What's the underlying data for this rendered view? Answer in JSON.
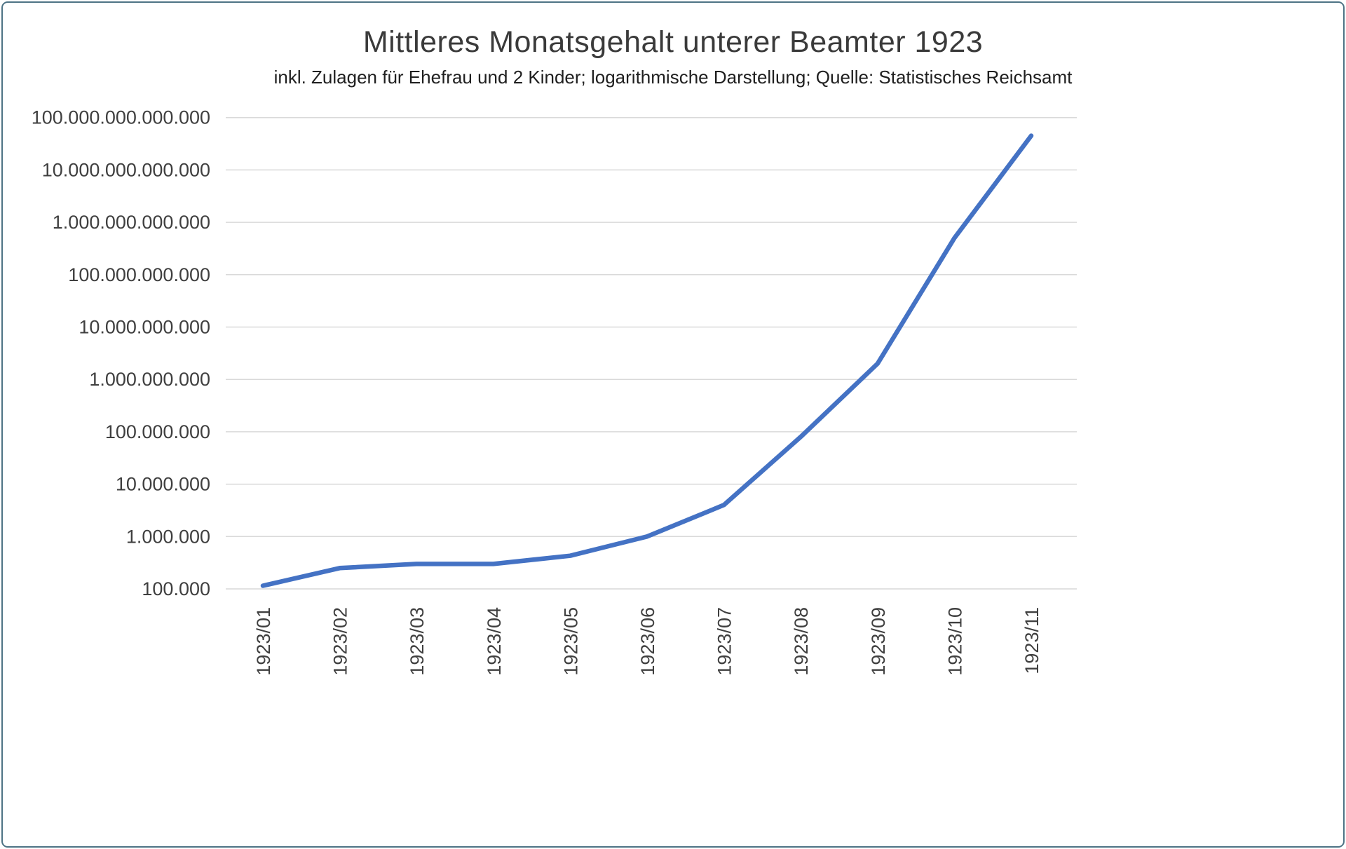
{
  "window": {
    "border_color": "#4e7385",
    "background": "#ffffff"
  },
  "chart_data": {
    "type": "line",
    "title": "Mittleres Monatsgehalt unterer Beamter 1923",
    "subtitle": "inkl. Zulagen für Ehefrau und 2 Kinder; logarithmische Darstellung; Quelle: Statistisches Reichsamt",
    "categories": [
      "1923/01",
      "1923/02",
      "1923/03",
      "1923/04",
      "1923/05",
      "1923/06",
      "1923/07",
      "1923/08",
      "1923/09",
      "1923/10",
      "1923/11"
    ],
    "series": [
      {
        "name": "Mittleres Monatsgehalt",
        "values": [
          115000,
          250000,
          300000,
          300000,
          430000,
          1000000,
          4000000,
          80000000,
          2000000000,
          500000000000,
          45000000000000
        ]
      }
    ],
    "y_scale": "log10",
    "ylim": [
      100000,
      100000000000000
    ],
    "y_ticks": [
      100000,
      1000000,
      10000000,
      100000000,
      1000000000,
      10000000000,
      100000000000,
      1000000000000,
      10000000000000,
      100000000000000
    ],
    "y_tick_labels": [
      "100.000",
      "1.000.000",
      "10.000.000",
      "100.000.000",
      "1.000.000.000",
      "10.000.000.000",
      "100.000.000.000",
      "1.000.000.000.000",
      "10.000.000.000.000",
      "100.000.000.000.000"
    ],
    "xlabel": "",
    "ylabel": "",
    "grid": "on",
    "legend": "none",
    "line_color": "#4472c4",
    "grid_color": "#d9d9d9",
    "tick_label_color": "#3f3f3f"
  }
}
